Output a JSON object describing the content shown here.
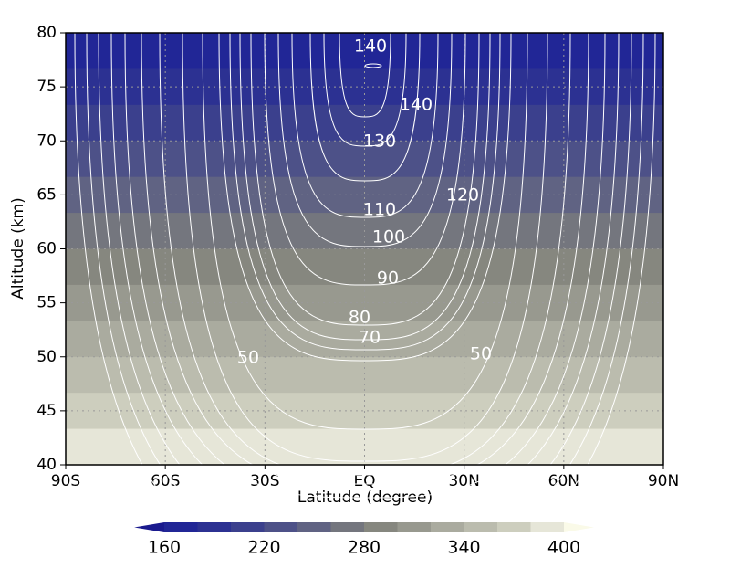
{
  "chart_data": {
    "type": "contour",
    "xlabel": "Latitude (degree)",
    "ylabel": "Altitude (km)",
    "xlim": [
      -90,
      90
    ],
    "xticks": [
      {
        "value": -90,
        "label": "90S"
      },
      {
        "value": -60,
        "label": "60S"
      },
      {
        "value": -30,
        "label": "30S"
      },
      {
        "value": 0,
        "label": "EQ"
      },
      {
        "value": 30,
        "label": "30N"
      },
      {
        "value": 60,
        "label": "60N"
      },
      {
        "value": 90,
        "label": "90N"
      }
    ],
    "ylim": [
      40,
      80
    ],
    "yticks": [
      40,
      45,
      50,
      55,
      60,
      65,
      70,
      75,
      80
    ],
    "grid": true,
    "contour_levels": [
      50,
      60,
      70,
      80,
      90,
      100,
      110,
      120,
      130,
      140
    ],
    "contour_labels": [
      140,
      140,
      130,
      120,
      110,
      100,
      90,
      80,
      70,
      50,
      50
    ],
    "colorbar": {
      "levels": [
        160,
        180,
        200,
        220,
        240,
        260,
        280,
        300,
        320,
        340,
        360,
        380,
        400
      ],
      "ticks": [
        160,
        220,
        280,
        340,
        400
      ],
      "colors": [
        "#1a1a8e",
        "#212696",
        "#2c3192",
        "#3b408d",
        "#4d5188",
        "#606383",
        "#74767e",
        "#86877f",
        "#98998f",
        "#aaab9f",
        "#bbbcae",
        "#cdcebe",
        "#e6e6d8",
        "#fafae8"
      ]
    }
  }
}
